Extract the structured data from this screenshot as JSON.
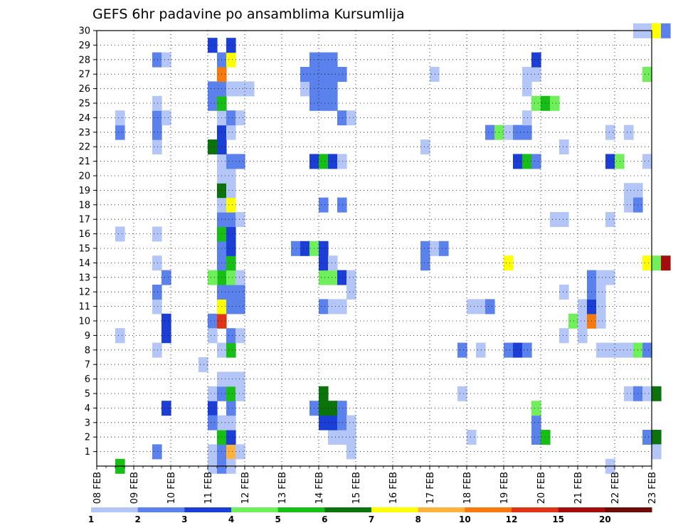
{
  "chart_data": {
    "type": "heatmap",
    "title": "GEFS 6hr padavine po ansamblima Kursumlija",
    "xlabel": "",
    "ylabel": "",
    "x_tick_labels": [
      "08 FEB",
      "09 FEB",
      "10 FEB",
      "11 FEB",
      "12 FEB",
      "13 FEB",
      "14 FEB",
      "15 FEB",
      "16 FEB",
      "17 FEB",
      "18 FEB",
      "19 FEB",
      "20 FEB",
      "21 FEB",
      "22 FEB",
      "23 FEB"
    ],
    "y_tick_labels": [
      "1",
      "2",
      "3",
      "4",
      "5",
      "6",
      "7",
      "8",
      "9",
      "10",
      "11",
      "12",
      "13",
      "14",
      "15",
      "16",
      "17",
      "18",
      "19",
      "20",
      "21",
      "22",
      "23",
      "24",
      "25",
      "26",
      "27",
      "28",
      "29",
      "30"
    ],
    "x_range_days": [
      0,
      15
    ],
    "y_range": [
      0,
      30
    ],
    "grid": true,
    "colorbar": {
      "labels": [
        "1",
        "2",
        "3",
        "4",
        "5",
        "6",
        "7",
        "8",
        "10",
        "12",
        "15",
        "20"
      ],
      "colors": [
        "#b3c6f7",
        "#5b82ec",
        "#1a3ed6",
        "#6ff05b",
        "#16be16",
        "#0b730b",
        "#ffff00",
        "#fcb23c",
        "#f77a0e",
        "#e03417",
        "#a50e0e",
        "#6d0b06"
      ]
    },
    "cells_note": "each cell: [day_offset_from_08FEB, member, category_index]",
    "cells": [
      [
        0.5,
        0,
        4
      ],
      [
        0.5,
        9,
        0
      ],
      [
        0.5,
        16,
        0
      ],
      [
        0.5,
        23,
        1
      ],
      [
        0.5,
        24,
        0
      ],
      [
        1.5,
        1,
        1
      ],
      [
        1.5,
        8,
        0
      ],
      [
        1.5,
        11,
        0
      ],
      [
        1.5,
        12,
        1
      ],
      [
        1.5,
        14,
        0
      ],
      [
        1.5,
        16,
        0
      ],
      [
        1.5,
        22,
        0
      ],
      [
        1.5,
        23,
        1
      ],
      [
        1.5,
        24,
        1
      ],
      [
        1.5,
        25,
        0
      ],
      [
        1.5,
        28,
        1
      ],
      [
        1.75,
        4,
        2
      ],
      [
        1.75,
        9,
        2
      ],
      [
        1.75,
        10,
        2
      ],
      [
        1.75,
        13,
        1
      ],
      [
        1.75,
        24,
        0
      ],
      [
        1.75,
        28,
        0
      ],
      [
        2.75,
        7,
        0
      ],
      [
        3.0,
        0,
        0
      ],
      [
        3.0,
        1,
        0
      ],
      [
        3.0,
        4,
        2
      ],
      [
        3.0,
        5,
        0
      ],
      [
        3.0,
        10,
        1
      ],
      [
        3.0,
        26,
        1
      ],
      [
        3.0,
        25,
        1
      ],
      [
        3.0,
        29,
        2
      ],
      [
        3.25,
        0,
        1
      ],
      [
        3.25,
        1,
        1
      ],
      [
        3.25,
        2,
        4
      ],
      [
        3.25,
        3,
        0
      ],
      [
        3.25,
        5,
        1
      ],
      [
        3.25,
        6,
        0
      ],
      [
        3.25,
        8,
        0
      ],
      [
        3.25,
        10,
        9
      ],
      [
        3.25,
        11,
        6
      ],
      [
        3.25,
        12,
        1
      ],
      [
        3.25,
        13,
        4
      ],
      [
        3.25,
        14,
        1
      ],
      [
        3.25,
        15,
        1
      ],
      [
        3.25,
        16,
        4
      ],
      [
        3.25,
        17,
        1
      ],
      [
        3.25,
        18,
        0
      ],
      [
        3.25,
        19,
        5
      ],
      [
        3.25,
        20,
        0
      ],
      [
        3.25,
        21,
        0
      ],
      [
        3.25,
        22,
        2
      ],
      [
        3.25,
        23,
        2
      ],
      [
        3.25,
        24,
        0
      ],
      [
        3.25,
        25,
        4
      ],
      [
        3.25,
        26,
        1
      ],
      [
        3.25,
        27,
        8
      ],
      [
        3.25,
        28,
        1
      ],
      [
        3.0,
        13,
        3
      ],
      [
        3.0,
        22,
        5
      ],
      [
        3.0,
        3,
        1
      ],
      [
        3.0,
        9,
        0
      ],
      [
        3.5,
        1,
        7
      ],
      [
        3.5,
        2,
        2
      ],
      [
        3.5,
        3,
        0
      ],
      [
        3.5,
        4,
        1
      ],
      [
        3.5,
        5,
        4
      ],
      [
        3.5,
        6,
        0
      ],
      [
        3.5,
        8,
        4
      ],
      [
        3.5,
        9,
        1
      ],
      [
        3.5,
        11,
        1
      ],
      [
        3.5,
        12,
        1
      ],
      [
        3.5,
        13,
        3
      ],
      [
        3.5,
        14,
        4
      ],
      [
        3.5,
        15,
        2
      ],
      [
        3.5,
        16,
        2
      ],
      [
        3.5,
        17,
        1
      ],
      [
        3.5,
        18,
        6
      ],
      [
        3.5,
        19,
        0
      ],
      [
        3.5,
        20,
        0
      ],
      [
        3.5,
        21,
        1
      ],
      [
        3.5,
        23,
        0
      ],
      [
        3.5,
        24,
        1
      ],
      [
        3.5,
        26,
        0
      ],
      [
        3.5,
        28,
        6
      ],
      [
        3.5,
        29,
        2
      ],
      [
        3.5,
        0,
        0
      ],
      [
        3.75,
        1,
        0
      ],
      [
        3.75,
        5,
        0
      ],
      [
        3.75,
        6,
        0
      ],
      [
        3.75,
        9,
        0
      ],
      [
        3.75,
        11,
        1
      ],
      [
        3.75,
        12,
        1
      ],
      [
        3.75,
        13,
        0
      ],
      [
        3.75,
        17,
        0
      ],
      [
        3.75,
        21,
        1
      ],
      [
        3.75,
        24,
        0
      ],
      [
        3.75,
        26,
        0
      ],
      [
        4.0,
        26,
        0
      ],
      [
        5.25,
        15,
        1
      ],
      [
        5.5,
        15,
        2
      ],
      [
        5.75,
        15,
        3
      ],
      [
        5.5,
        26,
        0
      ],
      [
        5.75,
        26,
        1
      ],
      [
        5.75,
        27,
        1
      ],
      [
        5.75,
        28,
        1
      ],
      [
        5.5,
        27,
        1
      ],
      [
        5.75,
        25,
        1
      ],
      [
        5.75,
        4,
        1
      ],
      [
        5.75,
        21,
        2
      ],
      [
        6.0,
        3,
        2
      ],
      [
        6.0,
        4,
        5
      ],
      [
        6.0,
        5,
        5
      ],
      [
        6.0,
        11,
        1
      ],
      [
        6.0,
        13,
        3
      ],
      [
        6.0,
        14,
        2
      ],
      [
        6.0,
        15,
        2
      ],
      [
        6.0,
        18,
        1
      ],
      [
        6.0,
        21,
        4
      ],
      [
        6.0,
        27,
        1
      ],
      [
        6.0,
        26,
        1
      ],
      [
        6.0,
        28,
        1
      ],
      [
        6.0,
        25,
        1
      ],
      [
        6.25,
        2,
        0
      ],
      [
        6.25,
        3,
        2
      ],
      [
        6.25,
        4,
        5
      ],
      [
        6.25,
        11,
        0
      ],
      [
        6.25,
        13,
        3
      ],
      [
        6.25,
        14,
        0
      ],
      [
        6.25,
        21,
        2
      ],
      [
        6.25,
        26,
        1
      ],
      [
        6.25,
        27,
        1
      ],
      [
        6.25,
        28,
        1
      ],
      [
        6.25,
        25,
        1
      ],
      [
        6.5,
        2,
        0
      ],
      [
        6.5,
        3,
        1
      ],
      [
        6.5,
        4,
        1
      ],
      [
        6.5,
        11,
        0
      ],
      [
        6.5,
        13,
        2
      ],
      [
        6.5,
        18,
        1
      ],
      [
        6.5,
        21,
        0
      ],
      [
        6.5,
        24,
        1
      ],
      [
        6.5,
        27,
        1
      ],
      [
        6.75,
        1,
        0
      ],
      [
        6.75,
        2,
        0
      ],
      [
        6.75,
        3,
        0
      ],
      [
        6.75,
        12,
        0
      ],
      [
        6.75,
        13,
        0
      ],
      [
        6.75,
        24,
        0
      ],
      [
        8.75,
        14,
        1
      ],
      [
        8.75,
        15,
        1
      ],
      [
        8.75,
        22,
        0
      ],
      [
        9.0,
        15,
        0
      ],
      [
        9.25,
        15,
        1
      ],
      [
        9.0,
        27,
        0
      ],
      [
        9.75,
        5,
        0
      ],
      [
        9.75,
        8,
        1
      ],
      [
        10.0,
        2,
        0
      ],
      [
        10.25,
        8,
        0
      ],
      [
        10.0,
        11,
        0
      ],
      [
        10.25,
        11,
        0
      ],
      [
        10.5,
        11,
        1
      ],
      [
        10.5,
        23,
        1
      ],
      [
        10.75,
        23,
        3
      ],
      [
        11.0,
        23,
        0
      ],
      [
        11.25,
        23,
        1
      ],
      [
        11.5,
        23,
        1
      ],
      [
        11.0,
        8,
        1
      ],
      [
        11.25,
        8,
        2
      ],
      [
        11.5,
        8,
        1
      ],
      [
        11.25,
        21,
        2
      ],
      [
        11.5,
        21,
        4
      ],
      [
        11.75,
        21,
        1
      ],
      [
        11.0,
        14,
        6
      ],
      [
        11.75,
        2,
        1
      ],
      [
        11.75,
        3,
        1
      ],
      [
        12.0,
        2,
        4
      ],
      [
        11.75,
        4,
        3
      ],
      [
        11.5,
        24,
        0
      ],
      [
        11.5,
        26,
        0
      ],
      [
        11.5,
        27,
        0
      ],
      [
        11.75,
        27,
        0
      ],
      [
        11.75,
        28,
        2
      ],
      [
        11.75,
        25,
        3
      ],
      [
        12.0,
        25,
        4
      ],
      [
        12.25,
        25,
        3
      ],
      [
        12.25,
        17,
        0
      ],
      [
        12.5,
        17,
        0
      ],
      [
        12.5,
        12,
        0
      ],
      [
        12.5,
        9,
        0
      ],
      [
        12.5,
        22,
        0
      ],
      [
        12.75,
        10,
        3
      ],
      [
        13.0,
        11,
        0
      ],
      [
        13.0,
        10,
        0
      ],
      [
        13.0,
        9,
        0
      ],
      [
        13.25,
        10,
        8
      ],
      [
        13.25,
        11,
        2
      ],
      [
        13.25,
        12,
        1
      ],
      [
        13.5,
        12,
        0
      ],
      [
        13.5,
        11,
        0
      ],
      [
        13.5,
        10,
        0
      ],
      [
        13.25,
        13,
        1
      ],
      [
        13.5,
        13,
        0
      ],
      [
        13.75,
        13,
        0
      ],
      [
        13.5,
        8,
        0
      ],
      [
        13.75,
        8,
        0
      ],
      [
        14.0,
        8,
        0
      ],
      [
        14.25,
        8,
        0
      ],
      [
        14.5,
        8,
        3
      ],
      [
        14.75,
        8,
        1
      ],
      [
        13.75,
        0,
        0
      ],
      [
        13.75,
        17,
        0
      ],
      [
        14.25,
        18,
        0
      ],
      [
        14.25,
        19,
        0
      ],
      [
        14.5,
        19,
        0
      ],
      [
        14.5,
        18,
        1
      ],
      [
        13.75,
        21,
        2
      ],
      [
        14.0,
        21,
        3
      ],
      [
        13.75,
        23,
        0
      ],
      [
        14.25,
        23,
        0
      ],
      [
        14.25,
        5,
        0
      ],
      [
        14.5,
        5,
        1
      ],
      [
        14.75,
        5,
        0
      ],
      [
        15.0,
        5,
        5
      ],
      [
        14.75,
        14,
        6
      ],
      [
        15.0,
        14,
        3
      ],
      [
        15.25,
        14,
        10
      ],
      [
        14.75,
        2,
        1
      ],
      [
        15.0,
        2,
        5
      ],
      [
        15.0,
        1,
        0
      ],
      [
        14.75,
        27,
        3
      ],
      [
        14.75,
        21,
        0
      ],
      [
        14.5,
        30,
        0
      ],
      [
        14.75,
        30,
        0
      ],
      [
        15.0,
        30,
        6
      ],
      [
        15.25,
        30,
        1
      ]
    ]
  }
}
